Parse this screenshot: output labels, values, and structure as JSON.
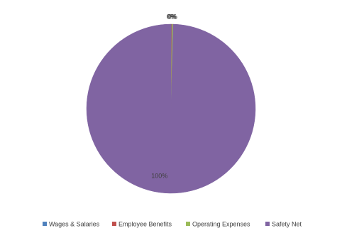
{
  "chart_data": {
    "type": "pie",
    "categories": [
      "Wages & Salaries",
      "Employee Benefits",
      "Operating Expenses",
      "Safety Net"
    ],
    "series": [
      {
        "colors": [
          "#4f81bd",
          "#c0504d",
          "#9bbb59",
          "#8064a2"
        ],
        "values": [
          0.1,
          0.1,
          0.2,
          99.6
        ],
        "value_labels": [
          "0%",
          "0%",
          "0%",
          "100%"
        ]
      }
    ],
    "legend": "bottom"
  }
}
